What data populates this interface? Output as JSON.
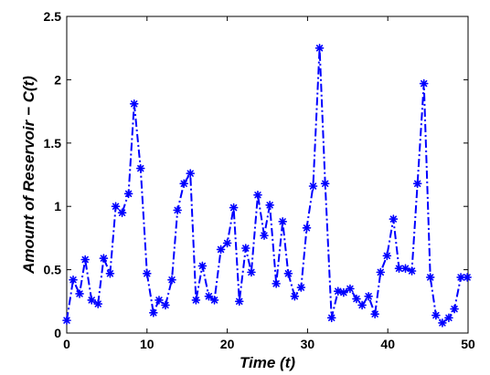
{
  "chart_data": {
    "type": "line",
    "title": "",
    "xlabel": "Time (t)",
    "ylabel": "Amount of Reservoir − C(t)",
    "xlim": [
      0,
      50
    ],
    "ylim": [
      0,
      2.5
    ],
    "xticks": [
      "0",
      "10",
      "20",
      "30",
      "40",
      "50"
    ],
    "yticks": [
      "0",
      "0.5",
      "1",
      "1.5",
      "2",
      "2.5"
    ],
    "grid": false,
    "legend": "none",
    "series": [
      {
        "color": "#0000ff",
        "line_style": "dash-dot",
        "marker": "asterisk",
        "x": [
          0.0,
          0.8,
          1.6,
          2.3,
          3.1,
          3.9,
          4.6,
          5.4,
          6.1,
          6.9,
          7.7,
          8.4,
          9.2,
          10.0,
          10.8,
          11.5,
          12.3,
          13.1,
          13.8,
          14.6,
          15.4,
          16.1,
          16.9,
          17.7,
          18.4,
          19.2,
          20.0,
          20.8,
          21.5,
          22.3,
          23.0,
          23.8,
          24.6,
          25.3,
          26.1,
          26.9,
          27.6,
          28.4,
          29.2,
          29.9,
          30.7,
          31.5,
          32.2,
          33.0,
          33.8,
          34.5,
          35.3,
          36.1,
          36.8,
          37.6,
          38.4,
          39.1,
          39.9,
          40.7,
          41.4,
          42.2,
          43.0,
          43.7,
          44.5,
          45.3,
          46.0,
          46.8,
          47.6,
          48.3,
          49.1,
          49.9
        ],
        "y": [
          0.1,
          0.42,
          0.31,
          0.58,
          0.26,
          0.23,
          0.59,
          0.47,
          1.0,
          0.95,
          1.1,
          1.81,
          1.3,
          0.47,
          0.16,
          0.26,
          0.22,
          0.42,
          0.97,
          1.18,
          1.26,
          0.26,
          0.53,
          0.29,
          0.26,
          0.66,
          0.71,
          0.99,
          0.25,
          0.67,
          0.48,
          1.09,
          0.77,
          1.01,
          0.39,
          0.88,
          0.47,
          0.29,
          0.36,
          0.83,
          1.16,
          2.25,
          1.18,
          0.12,
          0.33,
          0.32,
          0.35,
          0.27,
          0.22,
          0.29,
          0.15,
          0.48,
          0.61,
          0.9,
          0.51,
          0.51,
          0.49,
          1.18,
          1.97,
          0.44,
          0.14,
          0.08,
          0.12,
          0.19,
          0.44,
          0.44
        ]
      }
    ]
  }
}
